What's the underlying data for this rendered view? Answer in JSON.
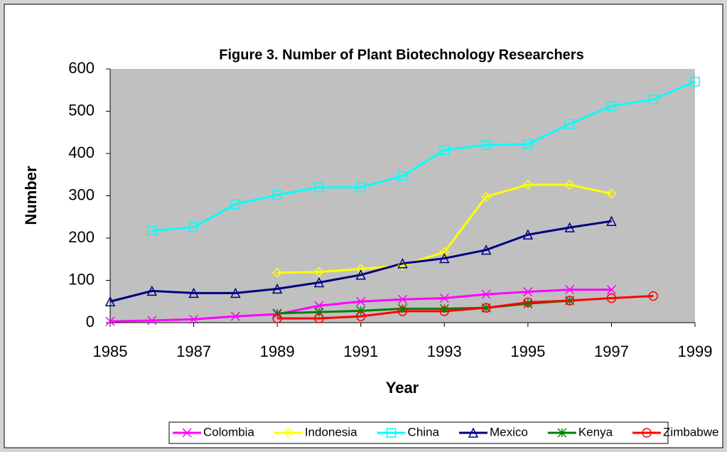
{
  "chart_data": {
    "type": "line",
    "title": "Figure 3. Number of Plant Biotechnology Researchers",
    "x_label": "Year",
    "y_label": "Number",
    "x": [
      1985,
      1986,
      1987,
      1988,
      1989,
      1990,
      1991,
      1992,
      1993,
      1994,
      1995,
      1996,
      1997,
      1998,
      1999
    ],
    "xlim": [
      1985,
      1999
    ],
    "xticks": [
      1985,
      1987,
      1989,
      1991,
      1993,
      1995,
      1997,
      1999
    ],
    "ylim": [
      0,
      600
    ],
    "yticks": [
      0,
      100,
      200,
      300,
      400,
      500,
      600
    ],
    "plot_background": "#c0c0c0",
    "legend": "bottom",
    "series": [
      {
        "name": "Colombia",
        "color": "#ff00ff",
        "marker": "x",
        "values": [
          3,
          5,
          8,
          15,
          20,
          40,
          50,
          55,
          58,
          67,
          73,
          78,
          78,
          null,
          null
        ]
      },
      {
        "name": "Indonesia",
        "color": "#ffff00",
        "marker": "diamond",
        "values": [
          null,
          null,
          null,
          null,
          118,
          120,
          127,
          135,
          167,
          298,
          326,
          326,
          305,
          null,
          null
        ]
      },
      {
        "name": "China",
        "color": "#00ffff",
        "marker": "square",
        "values": [
          null,
          217,
          226,
          280,
          302,
          320,
          320,
          347,
          408,
          420,
          422,
          470,
          512,
          528,
          570
        ]
      },
      {
        "name": "Mexico",
        "color": "#000080",
        "marker": "triangle",
        "values": [
          50,
          75,
          70,
          70,
          80,
          95,
          113,
          140,
          152,
          172,
          208,
          225,
          240,
          null,
          null
        ]
      },
      {
        "name": "Kenya",
        "color": "#008000",
        "marker": "asterisk",
        "values": [
          null,
          null,
          null,
          null,
          22,
          25,
          28,
          33,
          33,
          35,
          45,
          52,
          null,
          null,
          null
        ]
      },
      {
        "name": "Zimbabwe",
        "color": "#ff0000",
        "marker": "circle",
        "values": [
          null,
          null,
          null,
          null,
          10,
          10,
          15,
          27,
          27,
          35,
          48,
          52,
          58,
          63,
          null
        ]
      }
    ]
  }
}
